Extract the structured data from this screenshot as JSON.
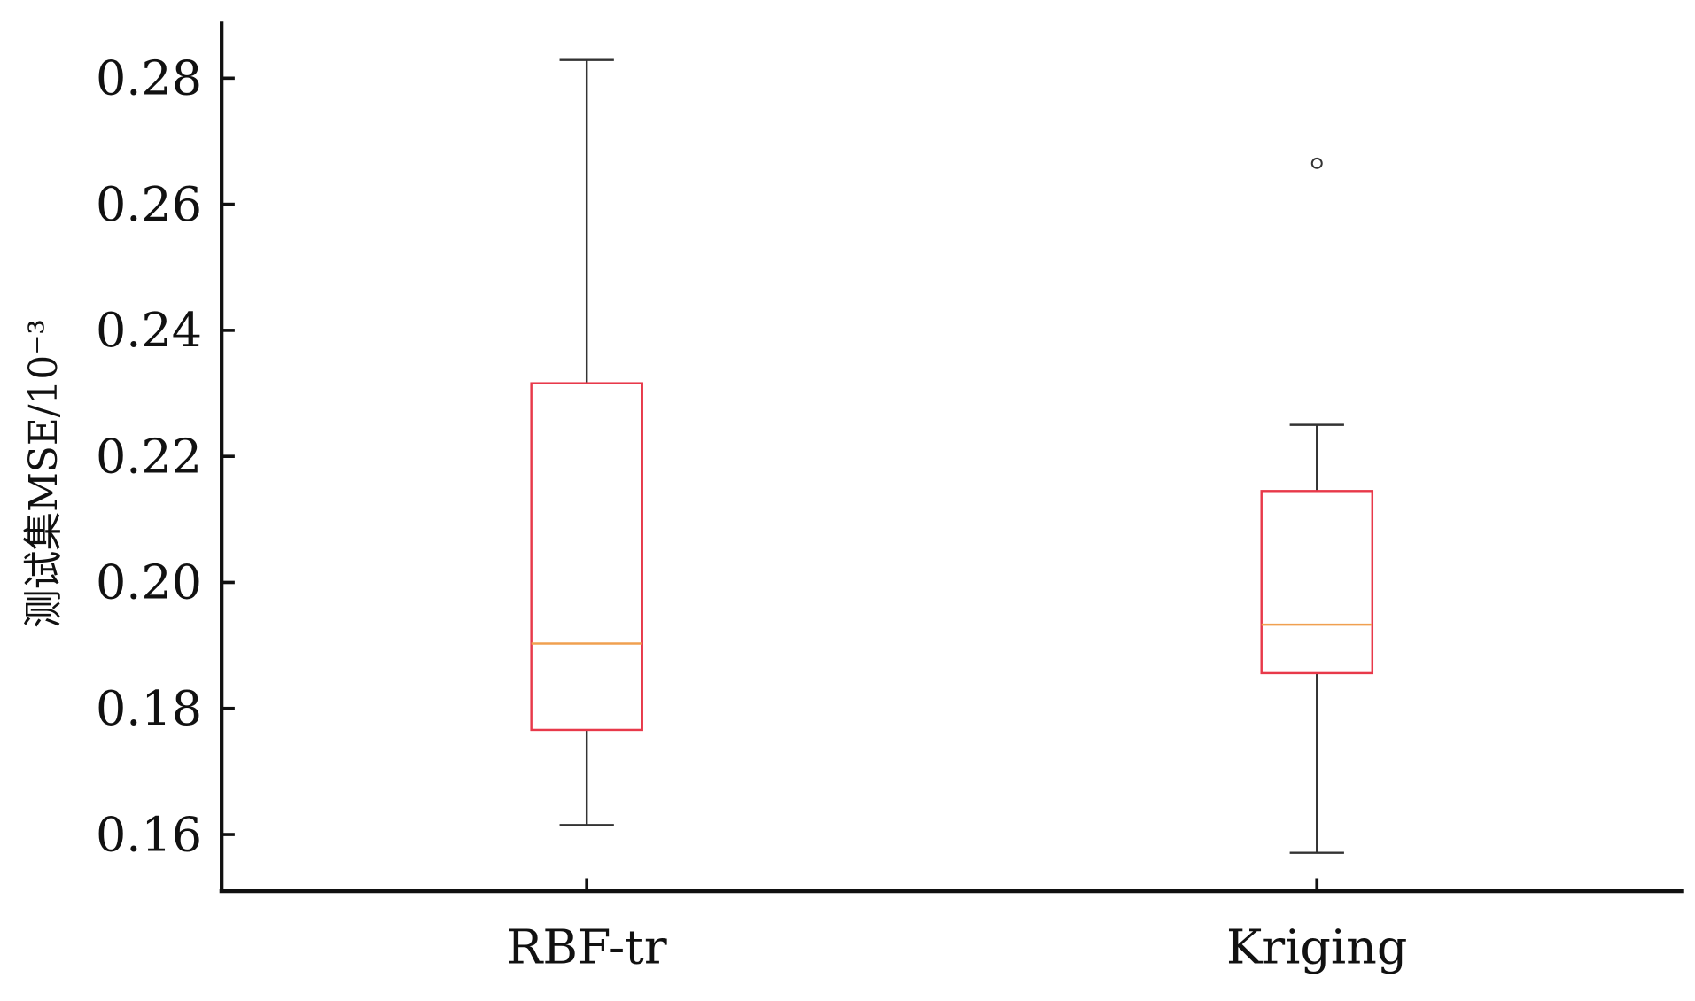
{
  "chart_data": {
    "type": "box",
    "title": "",
    "xlabel": "",
    "ylabel": "测试集MSE/10⁻³",
    "ylim": [
      0.151,
      0.289
    ],
    "yticks": [
      "0.16",
      "0.18",
      "0.20",
      "0.22",
      "0.24",
      "0.26",
      "0.28"
    ],
    "ytick_values": [
      0.16,
      0.18,
      0.2,
      0.22,
      0.24,
      0.26,
      0.28
    ],
    "categories": [
      "RBF-tr",
      "Kriging"
    ],
    "boxes": [
      {
        "name": "RBF-tr",
        "whisker_low": 0.1615,
        "q1": 0.1766,
        "median": 0.1903,
        "q3": 0.2316,
        "whisker_high": 0.2829,
        "outliers": []
      },
      {
        "name": "Kriging",
        "whisker_low": 0.1571,
        "q1": 0.1856,
        "median": 0.1933,
        "q3": 0.2145,
        "whisker_high": 0.225,
        "outliers": [
          0.2665
        ]
      }
    ],
    "colors": {
      "box": "#e8394a",
      "median": "#f0a050",
      "whisker": "#333333",
      "axis": "#111111"
    },
    "grid": false
  }
}
